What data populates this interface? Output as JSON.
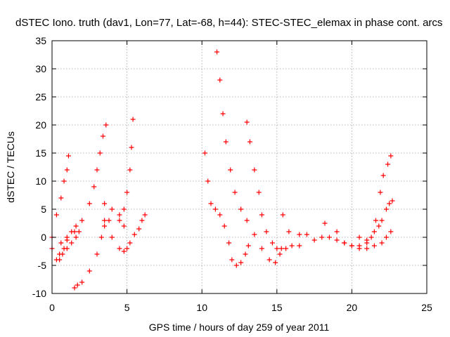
{
  "chart_data": {
    "type": "scatter",
    "title": "dSTEC Iono. truth (dav1, Lon=77, Lat=-68, h=44): STEC-STEC_elemax in phase cont. arcs",
    "xlabel": "GPS time / hours of day 259 of year 2011",
    "ylabel": "dSTEC  / TECUs",
    "xlim": [
      0,
      25
    ],
    "ylim": [
      -10,
      35
    ],
    "xticks": [
      0,
      5,
      10,
      15,
      20,
      25
    ],
    "yticks": [
      -10,
      -5,
      0,
      5,
      10,
      15,
      20,
      25,
      30,
      35
    ],
    "grid": true,
    "marker": "plus",
    "color": "#ff0000",
    "arcs": [
      {
        "x": [
          0.0,
          0.3,
          0.6,
          0.8,
          1.0,
          1.1
        ],
        "y": [
          0,
          4,
          7,
          10,
          12,
          14.5
        ]
      },
      {
        "x": [
          0.0,
          0.3,
          0.5,
          0.8,
          1.0,
          1.3,
          1.6
        ],
        "y": [
          -2,
          -4,
          -3,
          -2,
          0,
          1,
          2
        ]
      },
      {
        "x": [
          0.5,
          0.7,
          1.0,
          1.3,
          1.6,
          1.8
        ],
        "y": [
          -4,
          -3,
          -2,
          -1,
          0,
          1
        ]
      },
      {
        "x": [
          0.6,
          1.0,
          1.5,
          2.0,
          2.5,
          2.8,
          3.0,
          3.2,
          3.4,
          3.6
        ],
        "y": [
          -1,
          -0.5,
          1,
          3,
          6,
          9,
          12,
          15,
          18,
          20
        ]
      },
      {
        "x": [
          1.5,
          1.7,
          2.0,
          2.5,
          3.0,
          3.3,
          3.5,
          3.8,
          4.5,
          4.8,
          5.0,
          5.2,
          5.3,
          5.4
        ],
        "y": [
          -9,
          -8.5,
          -8,
          -6,
          -3,
          0,
          2,
          3,
          4,
          5,
          8,
          12,
          16,
          21
        ]
      },
      {
        "x": [
          3.5,
          4.0,
          4.5,
          4.8,
          5.0,
          5.2,
          5.5,
          5.8,
          6.0,
          6.2
        ],
        "y": [
          3,
          0,
          -2,
          -2.5,
          -2,
          -1,
          0.5,
          1.5,
          3,
          4
        ]
      },
      {
        "x": [
          3.5,
          4.0,
          4.5,
          4.8
        ],
        "y": [
          6,
          5,
          3,
          2
        ]
      },
      {
        "x": [
          10.2,
          10.4,
          10.6,
          10.9,
          11.2,
          11.5,
          11.8,
          12.0,
          12.3,
          12.6,
          12.9,
          13.1
        ],
        "y": [
          15,
          10,
          6,
          5,
          4,
          2,
          -1,
          -4,
          -5,
          -4.5,
          -3,
          -1.5
        ]
      },
      {
        "x": [
          11.0,
          11.2,
          11.4,
          11.6,
          11.9,
          12.2,
          12.6,
          13.0,
          13.5,
          14.0,
          14.5,
          14.9,
          15.2,
          15.6,
          16.0,
          16.5
        ],
        "y": [
          33,
          28,
          22,
          17,
          12,
          8,
          5,
          3,
          0.5,
          -2,
          -4,
          -4.5,
          -3,
          -2,
          -1.5,
          -1.5
        ]
      },
      {
        "x": [
          13.0,
          13.2,
          13.5,
          13.8,
          14.0,
          14.3,
          14.7,
          15.0,
          15.3
        ],
        "y": [
          20.5,
          17,
          12,
          8,
          4,
          1,
          -1,
          -2,
          -2
        ]
      },
      {
        "x": [
          15.4,
          15.8,
          16.5,
          17.0,
          17.5,
          18.0,
          18.2,
          18.5,
          19.0,
          19.5,
          20.0,
          20.5,
          21.0,
          21.5,
          22.0,
          22.3,
          22.6
        ],
        "y": [
          4,
          1,
          0.5,
          0.5,
          -0.5,
          0,
          2.5,
          0,
          -0.5,
          -1,
          -1.5,
          -1.5,
          -2,
          -1.5,
          -1,
          0,
          1
        ]
      },
      {
        "x": [
          19.0,
          19.5,
          20.0,
          20.5,
          21.0,
          21.3,
          21.6,
          21.9,
          22.1,
          22.4,
          22.6
        ],
        "y": [
          1,
          -1,
          -1.5,
          -2,
          -1,
          0,
          3,
          8,
          11,
          13,
          14.5
        ]
      },
      {
        "x": [
          20.5,
          21.0,
          21.5,
          21.8,
          22.0,
          22.3,
          22.5,
          22.7
        ],
        "y": [
          0,
          -0.5,
          1,
          2,
          3,
          5,
          6,
          6.5
        ]
      }
    ]
  }
}
